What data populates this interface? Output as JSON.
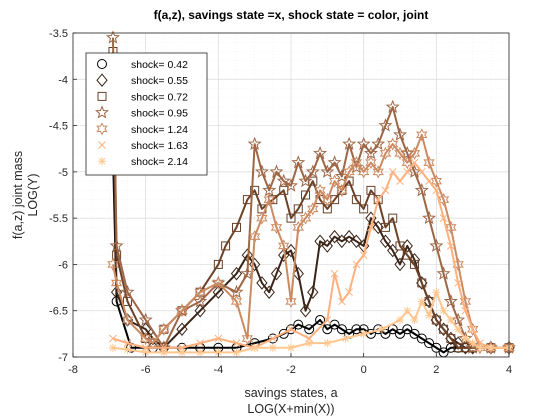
{
  "chart_data": {
    "type": "line",
    "title": "f(a,z), savings state =x, shock state = color, joint",
    "xlabel": [
      "savings states, a",
      "LOG(X+min(X))"
    ],
    "ylabel": [
      "f(a,z) joint mass",
      "LOG(Y)"
    ],
    "xlim": [
      -8,
      4
    ],
    "ylim": [
      -7,
      -3.5
    ],
    "xticks": [
      "-8",
      "-6",
      "-4",
      "-2",
      "0",
      "2",
      "4"
    ],
    "yticks": [
      "-3.5",
      "-4",
      "-4.5",
      "-5",
      "-5.5",
      "-6",
      "-6.5",
      "-7"
    ],
    "grid": true,
    "minor_grid": true,
    "legend_position": "top-left",
    "series": [
      {
        "name": "shock=  0.42",
        "color": "#000000",
        "marker": "circle",
        "points": [
          [
            -6.9,
            -4.8
          ],
          [
            -6.8,
            -6.4
          ],
          [
            -6.4,
            -6.9
          ],
          [
            -5.8,
            -6.9
          ],
          [
            -5.5,
            -6.9
          ],
          [
            -5.0,
            -6.9
          ],
          [
            -4.5,
            -6.9
          ],
          [
            -4.0,
            -6.9
          ],
          [
            -3.5,
            -6.9
          ],
          [
            -3.0,
            -6.85
          ],
          [
            -2.5,
            -6.8
          ],
          [
            -2.2,
            -6.75
          ],
          [
            -2.0,
            -6.7
          ],
          [
            -1.8,
            -6.65
          ],
          [
            -1.5,
            -6.7
          ],
          [
            -1.2,
            -6.6
          ],
          [
            -1.0,
            -6.7
          ],
          [
            -0.8,
            -6.65
          ],
          [
            -0.6,
            -6.7
          ],
          [
            -0.4,
            -6.75
          ],
          [
            -0.2,
            -6.7
          ],
          [
            0.0,
            -6.7
          ],
          [
            0.2,
            -6.75
          ],
          [
            0.4,
            -6.7
          ],
          [
            0.6,
            -6.75
          ],
          [
            0.8,
            -6.7
          ],
          [
            1.0,
            -6.75
          ],
          [
            1.2,
            -6.7
          ],
          [
            1.4,
            -6.75
          ],
          [
            1.6,
            -6.8
          ],
          [
            1.8,
            -6.85
          ],
          [
            2.0,
            -6.9
          ],
          [
            2.2,
            -6.95
          ],
          [
            2.4,
            -6.9
          ],
          [
            2.6,
            -6.9
          ],
          [
            2.8,
            -6.9
          ],
          [
            3.0,
            -6.9
          ],
          [
            3.5,
            -6.9
          ],
          [
            4.0,
            -6.9
          ]
        ]
      },
      {
        "name": "shock=  0.55",
        "color": "#3a2417",
        "marker": "diamond",
        "points": [
          [
            -6.9,
            -4.3
          ],
          [
            -6.8,
            -6.3
          ],
          [
            -6.5,
            -6.6
          ],
          [
            -6.0,
            -6.7
          ],
          [
            -5.8,
            -6.8
          ],
          [
            -5.5,
            -6.9
          ],
          [
            -5.0,
            -6.7
          ],
          [
            -4.5,
            -6.5
          ],
          [
            -4.0,
            -6.3
          ],
          [
            -3.5,
            -6.1
          ],
          [
            -3.2,
            -5.9
          ],
          [
            -3.0,
            -6.0
          ],
          [
            -2.8,
            -6.2
          ],
          [
            -2.6,
            -6.3
          ],
          [
            -2.4,
            -6.1
          ],
          [
            -2.2,
            -5.9
          ],
          [
            -2.0,
            -5.85
          ],
          [
            -1.8,
            -6.1
          ],
          [
            -1.6,
            -6.5
          ],
          [
            -1.4,
            -6.3
          ],
          [
            -1.2,
            -5.75
          ],
          [
            -1.0,
            -5.8
          ],
          [
            -0.8,
            -5.7
          ],
          [
            -0.6,
            -5.75
          ],
          [
            -0.4,
            -5.7
          ],
          [
            -0.2,
            -5.75
          ],
          [
            0.0,
            -5.8
          ],
          [
            0.2,
            -5.5
          ],
          [
            0.4,
            -5.6
          ],
          [
            0.6,
            -5.75
          ],
          [
            0.8,
            -5.85
          ],
          [
            1.0,
            -6.0
          ],
          [
            1.2,
            -5.8
          ],
          [
            1.4,
            -5.95
          ],
          [
            1.6,
            -6.2
          ],
          [
            1.8,
            -6.4
          ],
          [
            2.0,
            -6.6
          ],
          [
            2.2,
            -6.7
          ],
          [
            2.4,
            -6.8
          ],
          [
            2.6,
            -6.85
          ],
          [
            2.8,
            -6.9
          ],
          [
            3.0,
            -6.9
          ],
          [
            3.5,
            -6.9
          ],
          [
            4.0,
            -6.9
          ]
        ]
      },
      {
        "name": "shock=  0.72",
        "color": "#6b4128",
        "marker": "square",
        "points": [
          [
            -6.9,
            -3.7
          ],
          [
            -6.8,
            -5.9
          ],
          [
            -6.5,
            -6.4
          ],
          [
            -6.0,
            -6.8
          ],
          [
            -5.8,
            -6.85
          ],
          [
            -5.5,
            -6.7
          ],
          [
            -5.0,
            -6.5
          ],
          [
            -4.5,
            -6.3
          ],
          [
            -4.0,
            -6.0
          ],
          [
            -3.8,
            -5.8
          ],
          [
            -3.5,
            -5.6
          ],
          [
            -3.2,
            -5.3
          ],
          [
            -3.0,
            -5.2
          ],
          [
            -2.8,
            -5.4
          ],
          [
            -2.5,
            -5.3
          ],
          [
            -2.2,
            -5.2
          ],
          [
            -2.0,
            -5.5
          ],
          [
            -1.8,
            -5.4
          ],
          [
            -1.6,
            -5.25
          ],
          [
            -1.4,
            -5.1
          ],
          [
            -1.2,
            -5.3
          ],
          [
            -1.0,
            -5.4
          ],
          [
            -0.8,
            -5.3
          ],
          [
            -0.6,
            -5.2
          ],
          [
            -0.4,
            -5.1
          ],
          [
            -0.2,
            -5.3
          ],
          [
            0.0,
            -5.4
          ],
          [
            0.2,
            -5.2
          ],
          [
            0.4,
            -5.3
          ],
          [
            0.6,
            -5.6
          ],
          [
            0.8,
            -5.5
          ],
          [
            1.0,
            -5.8
          ],
          [
            1.2,
            -5.9
          ],
          [
            1.4,
            -6.0
          ],
          [
            1.6,
            -6.2
          ],
          [
            1.8,
            -6.4
          ],
          [
            2.0,
            -6.6
          ],
          [
            2.2,
            -6.7
          ],
          [
            2.4,
            -6.8
          ],
          [
            2.6,
            -6.9
          ],
          [
            2.8,
            -6.9
          ],
          [
            3.0,
            -6.9
          ],
          [
            3.5,
            -6.9
          ],
          [
            4.0,
            -6.9
          ]
        ]
      },
      {
        "name": "shock=  0.95",
        "color": "#9d6645",
        "marker": "pentagram",
        "points": [
          [
            -6.9,
            -3.55
          ],
          [
            -6.8,
            -5.8
          ],
          [
            -6.5,
            -6.3
          ],
          [
            -6.0,
            -6.6
          ],
          [
            -5.5,
            -6.9
          ],
          [
            -5.0,
            -6.5
          ],
          [
            -4.5,
            -6.4
          ],
          [
            -4.0,
            -6.2
          ],
          [
            -3.5,
            -6.3
          ],
          [
            -3.2,
            -6.1
          ],
          [
            -3.0,
            -4.7
          ],
          [
            -2.8,
            -5.0
          ],
          [
            -2.6,
            -5.2
          ],
          [
            -2.4,
            -5.0
          ],
          [
            -2.2,
            -5.1
          ],
          [
            -2.0,
            -5.15
          ],
          [
            -1.8,
            -4.9
          ],
          [
            -1.6,
            -5.1
          ],
          [
            -1.4,
            -5.0
          ],
          [
            -1.2,
            -4.8
          ],
          [
            -1.0,
            -5.0
          ],
          [
            -0.8,
            -4.9
          ],
          [
            -0.6,
            -5.05
          ],
          [
            -0.4,
            -4.7
          ],
          [
            -0.2,
            -4.95
          ],
          [
            0.0,
            -4.7
          ],
          [
            0.2,
            -4.8
          ],
          [
            0.4,
            -4.7
          ],
          [
            0.6,
            -4.5
          ],
          [
            0.8,
            -4.3
          ],
          [
            1.0,
            -4.6
          ],
          [
            1.2,
            -4.8
          ],
          [
            1.4,
            -5.0
          ],
          [
            1.6,
            -5.2
          ],
          [
            1.8,
            -5.5
          ],
          [
            2.0,
            -5.8
          ],
          [
            2.2,
            -6.1
          ],
          [
            2.4,
            -6.4
          ],
          [
            2.6,
            -6.6
          ],
          [
            2.8,
            -6.8
          ],
          [
            3.0,
            -6.9
          ],
          [
            3.5,
            -6.9
          ],
          [
            4.0,
            -6.9
          ]
        ]
      },
      {
        "name": "shock=  1.24",
        "color": "#cc8a61",
        "marker": "hexagram",
        "points": [
          [
            -6.9,
            -6.0
          ],
          [
            -6.8,
            -6.2
          ],
          [
            -6.5,
            -6.6
          ],
          [
            -6.0,
            -6.8
          ],
          [
            -5.8,
            -6.85
          ],
          [
            -5.5,
            -6.7
          ],
          [
            -5.0,
            -6.5
          ],
          [
            -4.5,
            -6.3
          ],
          [
            -4.0,
            -6.2
          ],
          [
            -3.5,
            -6.4
          ],
          [
            -3.2,
            -6.8
          ],
          [
            -3.0,
            -5.7
          ],
          [
            -2.8,
            -5.5
          ],
          [
            -2.6,
            -5.3
          ],
          [
            -2.4,
            -5.6
          ],
          [
            -2.2,
            -5.8
          ],
          [
            -2.0,
            -6.4
          ],
          [
            -1.8,
            -5.6
          ],
          [
            -1.6,
            -5.5
          ],
          [
            -1.4,
            -5.4
          ],
          [
            -1.2,
            -5.2
          ],
          [
            -1.0,
            -5.3
          ],
          [
            -0.8,
            -5.1
          ],
          [
            -0.6,
            -5.2
          ],
          [
            -0.4,
            -5.0
          ],
          [
            -0.2,
            -4.9
          ],
          [
            0.0,
            -5.0
          ],
          [
            0.2,
            -4.9
          ],
          [
            0.4,
            -5.0
          ],
          [
            0.6,
            -4.8
          ],
          [
            0.8,
            -4.7
          ],
          [
            1.0,
            -4.8
          ],
          [
            1.2,
            -4.9
          ],
          [
            1.4,
            -4.8
          ],
          [
            1.6,
            -4.6
          ],
          [
            1.8,
            -4.9
          ],
          [
            2.0,
            -5.1
          ],
          [
            2.2,
            -5.3
          ],
          [
            2.4,
            -5.6
          ],
          [
            2.6,
            -6.0
          ],
          [
            2.8,
            -6.4
          ],
          [
            3.0,
            -6.7
          ],
          [
            3.2,
            -6.9
          ],
          [
            3.5,
            -6.9
          ],
          [
            4.0,
            -6.9
          ]
        ]
      },
      {
        "name": "shock=  1.63",
        "color": "#ffb07d",
        "marker": "x",
        "points": [
          [
            -6.9,
            -6.8
          ],
          [
            -6.5,
            -6.85
          ],
          [
            -6.0,
            -6.9
          ],
          [
            -5.5,
            -6.9
          ],
          [
            -5.0,
            -6.9
          ],
          [
            -4.5,
            -6.85
          ],
          [
            -4.0,
            -6.8
          ],
          [
            -3.5,
            -6.85
          ],
          [
            -3.0,
            -6.9
          ],
          [
            -2.5,
            -6.8
          ],
          [
            -2.0,
            -6.7
          ],
          [
            -1.5,
            -6.8
          ],
          [
            -1.0,
            -6.6
          ],
          [
            -0.8,
            -6.1
          ],
          [
            -0.6,
            -6.4
          ],
          [
            -0.4,
            -6.3
          ],
          [
            -0.2,
            -6.0
          ],
          [
            0.0,
            -5.9
          ],
          [
            0.2,
            -5.6
          ],
          [
            0.4,
            -5.3
          ],
          [
            0.6,
            -5.2
          ],
          [
            0.8,
            -5.0
          ],
          [
            1.0,
            -5.1
          ],
          [
            1.2,
            -5.0
          ],
          [
            1.4,
            -4.9
          ],
          [
            1.6,
            -5.0
          ],
          [
            1.8,
            -5.1
          ],
          [
            2.0,
            -5.2
          ],
          [
            2.2,
            -5.5
          ],
          [
            2.4,
            -5.8
          ],
          [
            2.6,
            -6.2
          ],
          [
            2.8,
            -6.5
          ],
          [
            3.0,
            -6.7
          ],
          [
            3.2,
            -6.85
          ],
          [
            3.5,
            -6.9
          ],
          [
            4.0,
            -6.9
          ]
        ]
      },
      {
        "name": "shock=  2.14",
        "color": "#ffc78f",
        "marker": "asterisk",
        "points": [
          [
            -6.9,
            -6.9
          ],
          [
            -6.5,
            -6.92
          ],
          [
            -6.0,
            -6.95
          ],
          [
            -5.5,
            -6.95
          ],
          [
            -5.0,
            -6.95
          ],
          [
            -4.5,
            -6.95
          ],
          [
            -4.0,
            -6.95
          ],
          [
            -3.5,
            -6.95
          ],
          [
            -3.0,
            -6.9
          ],
          [
            -2.5,
            -6.9
          ],
          [
            -2.0,
            -6.9
          ],
          [
            -1.5,
            -6.85
          ],
          [
            -1.0,
            -6.85
          ],
          [
            -0.5,
            -6.8
          ],
          [
            0.0,
            -6.75
          ],
          [
            0.5,
            -6.7
          ],
          [
            1.0,
            -6.6
          ],
          [
            1.2,
            -6.5
          ],
          [
            1.4,
            -6.6
          ],
          [
            1.6,
            -6.4
          ],
          [
            1.8,
            -6.55
          ],
          [
            2.0,
            -6.3
          ],
          [
            2.2,
            -6.5
          ],
          [
            2.4,
            -6.6
          ],
          [
            2.6,
            -6.7
          ],
          [
            2.8,
            -6.8
          ],
          [
            3.0,
            -6.85
          ],
          [
            3.2,
            -6.9
          ],
          [
            3.5,
            -6.9
          ],
          [
            4.0,
            -6.9
          ]
        ]
      }
    ]
  }
}
